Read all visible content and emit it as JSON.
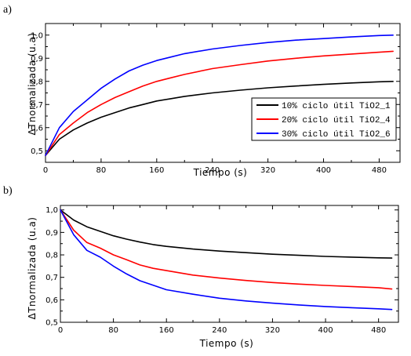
{
  "chart_data": [
    {
      "type": "line",
      "panel_label": "a)",
      "xlabel": "Tiempo (s)",
      "ylabel": "ΔTnormalizada (u.a)",
      "xlim": [
        0,
        510
      ],
      "ylim": [
        0.45,
        1.05
      ],
      "xticks": [
        0,
        80,
        160,
        240,
        320,
        400,
        480
      ],
      "yticks": [
        "0,5",
        "0,6",
        "0,7",
        "0,8",
        "0,9",
        "1,0"
      ],
      "ytick_values": [
        0.5,
        0.6,
        0.7,
        0.8,
        0.9,
        1.0
      ],
      "grid": false,
      "legend_position": "bottom-right",
      "series": [
        {
          "name": "10% ciclo útil TiO2_1",
          "color": "#000000",
          "x": [
            0,
            20,
            40,
            60,
            80,
            100,
            120,
            140,
            160,
            180,
            200,
            240,
            280,
            320,
            360,
            400,
            440,
            480,
            500
          ],
          "y": [
            0.48,
            0.55,
            0.59,
            0.62,
            0.645,
            0.665,
            0.685,
            0.7,
            0.715,
            0.725,
            0.735,
            0.75,
            0.762,
            0.772,
            0.78,
            0.787,
            0.793,
            0.798,
            0.8
          ]
        },
        {
          "name": "20% ciclo útil TiO2_4",
          "color": "#ff0000",
          "x": [
            0,
            20,
            40,
            60,
            80,
            100,
            120,
            140,
            160,
            180,
            200,
            240,
            280,
            320,
            360,
            400,
            440,
            480,
            500
          ],
          "y": [
            0.48,
            0.57,
            0.62,
            0.665,
            0.7,
            0.73,
            0.755,
            0.78,
            0.8,
            0.815,
            0.83,
            0.855,
            0.872,
            0.888,
            0.9,
            0.91,
            0.918,
            0.926,
            0.93
          ]
        },
        {
          "name": "30% ciclo útil TiO2_6",
          "color": "#0000ff",
          "x": [
            0,
            20,
            40,
            60,
            80,
            100,
            120,
            140,
            160,
            180,
            200,
            240,
            280,
            320,
            360,
            400,
            440,
            480,
            500
          ],
          "y": [
            0.48,
            0.6,
            0.67,
            0.72,
            0.77,
            0.81,
            0.845,
            0.87,
            0.89,
            0.905,
            0.92,
            0.94,
            0.955,
            0.968,
            0.978,
            0.985,
            0.992,
            0.998,
            1.0
          ]
        }
      ]
    },
    {
      "type": "line",
      "panel_label": "b)",
      "xlabel": "Tiempo (s)",
      "ylabel": "ΔTnormalizada (u.a)",
      "xlim": [
        0,
        510
      ],
      "ylim": [
        0.5,
        1.02
      ],
      "xticks": [
        0,
        80,
        160,
        240,
        320,
        400,
        480
      ],
      "yticks": [
        "0,5",
        "0,6",
        "0,7",
        "0,8",
        "0,9",
        "1,0"
      ],
      "ytick_values": [
        0.5,
        0.6,
        0.7,
        0.8,
        0.9,
        1.0
      ],
      "grid": false,
      "series": [
        {
          "name": "10% ciclo útil TiO2_1",
          "color": "#000000",
          "x": [
            0,
            20,
            40,
            60,
            80,
            100,
            120,
            140,
            160,
            200,
            240,
            280,
            320,
            360,
            400,
            440,
            480,
            500
          ],
          "y": [
            1.0,
            0.955,
            0.925,
            0.905,
            0.885,
            0.87,
            0.857,
            0.846,
            0.838,
            0.826,
            0.817,
            0.81,
            0.803,
            0.798,
            0.793,
            0.79,
            0.787,
            0.786
          ]
        },
        {
          "name": "20% ciclo útil TiO2_4",
          "color": "#ff0000",
          "x": [
            0,
            20,
            40,
            60,
            80,
            100,
            120,
            140,
            160,
            200,
            240,
            280,
            320,
            360,
            400,
            440,
            480,
            500
          ],
          "y": [
            1.0,
            0.91,
            0.855,
            0.83,
            0.8,
            0.778,
            0.755,
            0.74,
            0.73,
            0.71,
            0.697,
            0.686,
            0.677,
            0.67,
            0.664,
            0.659,
            0.654,
            0.648
          ]
        },
        {
          "name": "30% ciclo útil TiO2_6",
          "color": "#0000ff",
          "x": [
            0,
            20,
            40,
            60,
            80,
            100,
            120,
            140,
            160,
            200,
            240,
            280,
            320,
            360,
            400,
            440,
            480,
            500
          ],
          "y": [
            1.0,
            0.89,
            0.82,
            0.79,
            0.75,
            0.715,
            0.685,
            0.665,
            0.645,
            0.625,
            0.607,
            0.595,
            0.585,
            0.577,
            0.57,
            0.565,
            0.56,
            0.557
          ]
        }
      ]
    }
  ]
}
